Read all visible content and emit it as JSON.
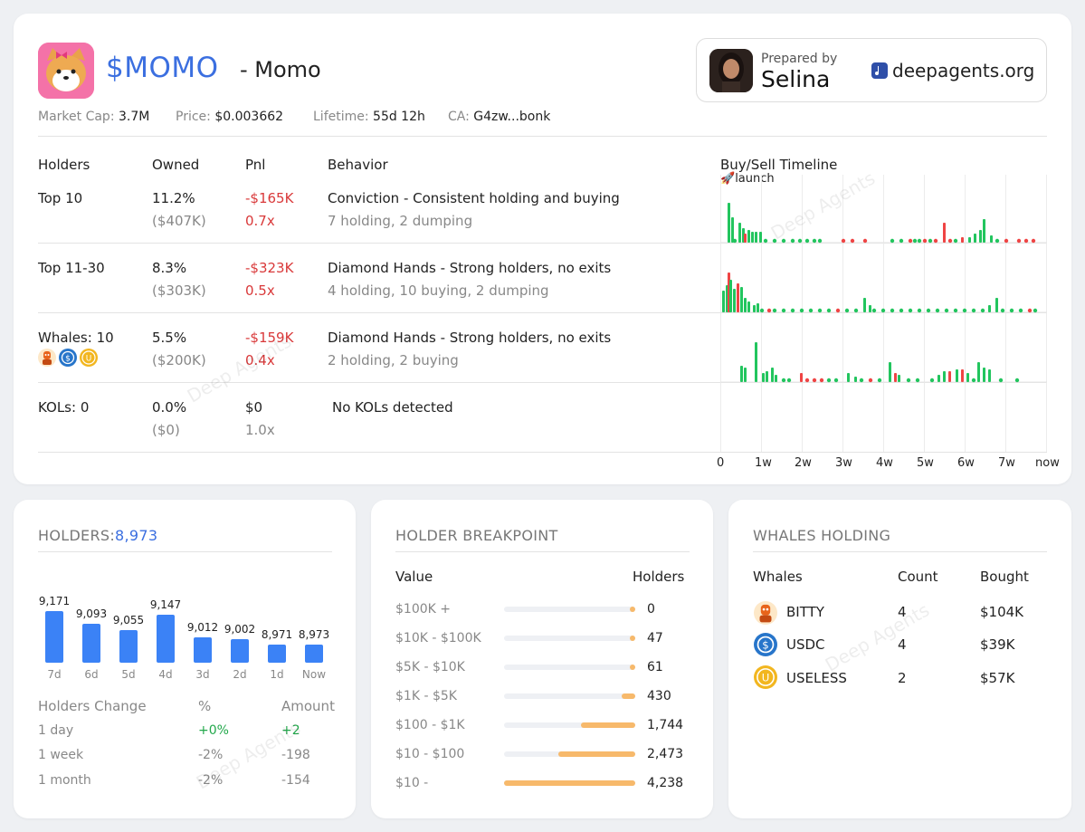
{
  "token": {
    "ticker": "$MOMO",
    "name": "- Momo"
  },
  "meta": {
    "market_cap_label": "Market Cap:",
    "market_cap": "3.7M",
    "price_label": "Price:",
    "price": "$0.003662",
    "lifetime_label": "Lifetime:",
    "lifetime": "55d 12h",
    "ca_label": "CA:",
    "ca": "G4zw...bonk"
  },
  "prepared": {
    "label": "Prepared by",
    "name": "Selina",
    "brand": "deepagents.org"
  },
  "table": {
    "headers": {
      "holders": "Holders",
      "owned": "Owned",
      "pnl": "Pnl",
      "behavior": "Behavior"
    },
    "rows": [
      {
        "holders": "Top 10",
        "owned": "11.2%",
        "owned_usd": "($407K)",
        "pnl": "-$165K",
        "pnl_x": "0.7x",
        "behavior": "Conviction - Consistent holding and buying",
        "detail": "7 holding, 2 dumping"
      },
      {
        "holders": "Top 11-30",
        "owned": "8.3%",
        "owned_usd": "($303K)",
        "pnl": "-$323K",
        "pnl_x": "0.5x",
        "behavior": "Diamond Hands - Strong holders, no exits",
        "detail": "4 holding, 10 buying, 2 dumping"
      },
      {
        "holders": "Whales: 10",
        "owned": "5.5%",
        "owned_usd": "($200K)",
        "pnl": "-$159K",
        "pnl_x": "0.4x",
        "behavior": "Diamond Hands - Strong holders, no exits",
        "detail": "2 holding, 2 buying"
      },
      {
        "holders": "KOLs: 0",
        "owned": "0.0%",
        "owned_usd": "($0)",
        "pnl": "$0",
        "pnl_x": "1.0x",
        "behavior": "No KOLs detected",
        "detail": ""
      }
    ]
  },
  "timeline": {
    "title": "Buy/Sell Timeline",
    "launch_label": "launch",
    "ticks": [
      "0",
      "1w",
      "2w",
      "3w",
      "4w",
      "5w",
      "6w",
      "7w",
      "now"
    ],
    "colors": {
      "buy": "#22c55e",
      "sell": "#ef4444"
    }
  },
  "holders_panel": {
    "title": "HOLDERS:",
    "total": "8,973",
    "chart_data": {
      "type": "bar",
      "categories": [
        "7d",
        "6d",
        "5d",
        "4d",
        "3d",
        "2d",
        "1d",
        "Now"
      ],
      "values": [
        9171,
        9093,
        9055,
        9147,
        9012,
        9002,
        8971,
        8973
      ],
      "value_labels": [
        "9,171",
        "9,093",
        "9,055",
        "9,147",
        "9,012",
        "9,002",
        "8,971",
        "8,973"
      ]
    },
    "change_headers": {
      "label": "Holders Change",
      "pct": "%",
      "amount": "Amount"
    },
    "changes": [
      {
        "period": "1 day",
        "pct": "+0%",
        "amount": "+2"
      },
      {
        "period": "1 week",
        "pct": "-2%",
        "amount": "-198"
      },
      {
        "period": "1 month",
        "pct": "-2%",
        "amount": "-154"
      }
    ]
  },
  "breakpoint_panel": {
    "title": "HOLDER BREAKPOINT",
    "headers": {
      "value": "Value",
      "holders": "Holders"
    },
    "rows": [
      {
        "range": "$100K +",
        "holders": "0",
        "count": 0
      },
      {
        "range": "$10K - $100K",
        "holders": "47",
        "count": 47
      },
      {
        "range": "$5K - $10K",
        "holders": "61",
        "count": 61
      },
      {
        "range": "$1K - $5K",
        "holders": "430",
        "count": 430
      },
      {
        "range": "$100 - $1K",
        "holders": "1,744",
        "count": 1744
      },
      {
        "range": "$10 - $100",
        "holders": "2,473",
        "count": 2473
      },
      {
        "range": "$10 -",
        "holders": "4,238",
        "count": 4238
      }
    ]
  },
  "whales_panel": {
    "title": "WHALES HOLDING",
    "headers": {
      "whales": "Whales",
      "count": "Count",
      "bought": "Bought"
    },
    "rows": [
      {
        "name": "BITTY",
        "count": "4",
        "bought": "$104K",
        "icon": "bitty-icon"
      },
      {
        "name": "USDC",
        "count": "4",
        "bought": "$39K",
        "icon": "usdc-icon"
      },
      {
        "name": "USELESS",
        "count": "2",
        "bought": "$57K",
        "icon": "useless-icon"
      }
    ]
  },
  "watermark": "Deep Agents"
}
